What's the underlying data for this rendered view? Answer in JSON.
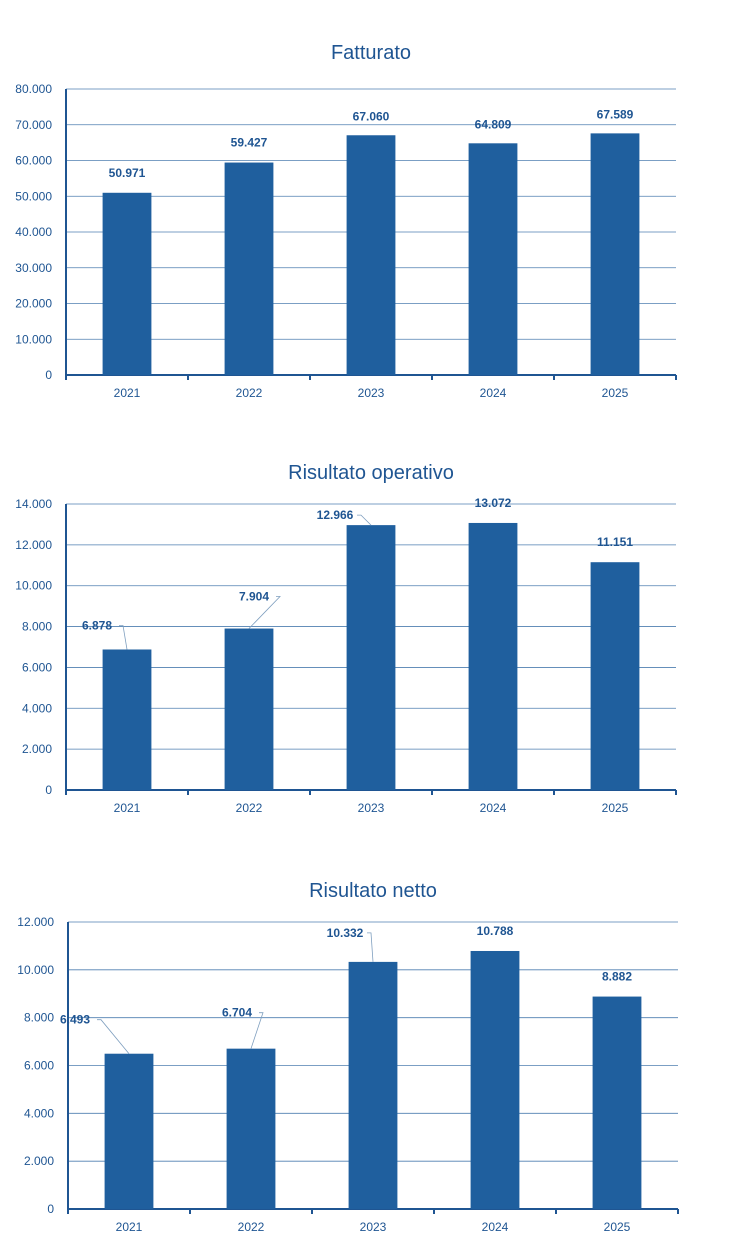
{
  "colors": {
    "bar": "#1f5f9e",
    "text": "#1f5592",
    "grid": "#4f7fb0"
  },
  "chart_data": [
    {
      "type": "bar",
      "title": "Fatturato",
      "categories": [
        "2021",
        "2022",
        "2023",
        "2024",
        "2025"
      ],
      "values": [
        50971,
        59427,
        67060,
        64809,
        67589
      ],
      "value_labels": [
        "50.971",
        "59.427",
        "67.060",
        "64.809",
        "67.589"
      ],
      "yticks": [
        0,
        10000,
        20000,
        30000,
        40000,
        50000,
        60000,
        70000,
        80000
      ],
      "ytick_labels": [
        "0",
        "10.000",
        "20.000",
        "30.000",
        "40.000",
        "50.000",
        "60.000",
        "70.000",
        "80.000"
      ],
      "ylim": [
        0,
        80000
      ],
      "xlabel": "",
      "ylabel": "",
      "grid": true,
      "legend": "none"
    },
    {
      "type": "bar",
      "title": "Risultato operativo",
      "categories": [
        "2021",
        "2022",
        "2023",
        "2024",
        "2025"
      ],
      "values": [
        6878,
        7904,
        12966,
        13072,
        11151
      ],
      "value_labels": [
        "6.878",
        "7.904",
        "12.966",
        "13.072",
        "11.151"
      ],
      "yticks": [
        0,
        2000,
        4000,
        6000,
        8000,
        10000,
        12000,
        14000
      ],
      "ytick_labels": [
        "0",
        "2.000",
        "4.000",
        "6.000",
        "8.000",
        "10.000",
        "12.000",
        "14.000"
      ],
      "ylim": [
        0,
        14000
      ],
      "xlabel": "",
      "ylabel": "",
      "grid": true,
      "legend": "none"
    },
    {
      "type": "bar",
      "title": "Risultato netto",
      "categories": [
        "2021",
        "2022",
        "2023",
        "2024",
        "2025"
      ],
      "values": [
        6493,
        6704,
        10332,
        10788,
        8882
      ],
      "value_labels": [
        "6.493",
        "6.704",
        "10.332",
        "10.788",
        "8.882"
      ],
      "yticks": [
        0,
        2000,
        4000,
        6000,
        8000,
        10000,
        12000
      ],
      "ytick_labels": [
        "0",
        "2.000",
        "4.000",
        "6.000",
        "8.000",
        "10.000",
        "12.000"
      ],
      "ylim": [
        0,
        12000
      ],
      "xlabel": "",
      "ylabel": "",
      "grid": true,
      "legend": "none"
    }
  ]
}
